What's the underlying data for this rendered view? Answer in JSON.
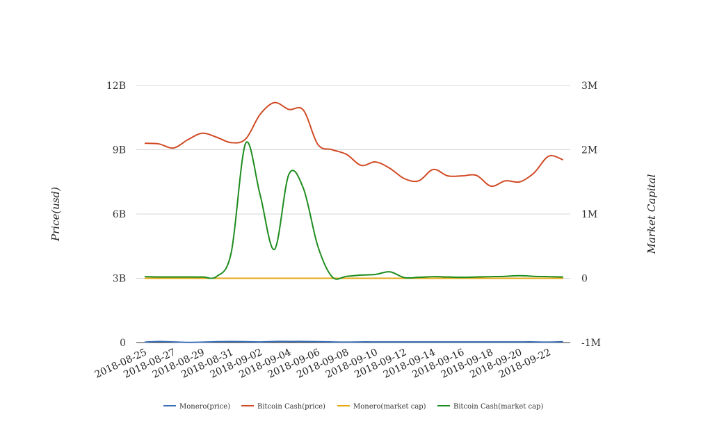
{
  "chart_data": {
    "type": "line",
    "title": "",
    "ylabel_left": "Price(usd)",
    "ylabel_right": "Market Capital",
    "y_left_ticks": [
      "0",
      "3B",
      "6B",
      "9B",
      "12B"
    ],
    "y_left_range": [
      0,
      12000000000
    ],
    "y_right_ticks": [
      "-1M",
      "0",
      "1M",
      "2M",
      "3M"
    ],
    "y_right_range": [
      -1000000,
      3000000
    ],
    "x_ticks": [
      "2018-08-25",
      "2018-08-27",
      "2018-08-29",
      "2018-08-31",
      "2018-09-02",
      "2018-09-04",
      "2018-09-06",
      "2018-09-08",
      "2018-09-10",
      "2018-09-12",
      "2018-09-14",
      "2018-09-16",
      "2018-09-18",
      "2018-09-20",
      "2018-09-22"
    ],
    "x": [
      "2018-08-25",
      "2018-08-26",
      "2018-08-27",
      "2018-08-28",
      "2018-08-29",
      "2018-08-30",
      "2018-08-31",
      "2018-09-01",
      "2018-09-02",
      "2018-09-03",
      "2018-09-04",
      "2018-09-05",
      "2018-09-06",
      "2018-09-07",
      "2018-09-08",
      "2018-09-09",
      "2018-09-10",
      "2018-09-11",
      "2018-09-12",
      "2018-09-13",
      "2018-09-14",
      "2018-09-15",
      "2018-09-16",
      "2018-09-17",
      "2018-09-18",
      "2018-09-19",
      "2018-09-20",
      "2018-09-21",
      "2018-09-22",
      "2018-09-23"
    ],
    "grid": true,
    "legend_position": "bottom",
    "series": [
      {
        "name": "Monero(price)",
        "axis": "left",
        "color": "#3a6eb5",
        "values": [
          20000000,
          50000000,
          30000000,
          10000000,
          20000000,
          40000000,
          50000000,
          40000000,
          30000000,
          50000000,
          50000000,
          50000000,
          40000000,
          30000000,
          20000000,
          30000000,
          30000000,
          30000000,
          30000000,
          30000000,
          30000000,
          30000000,
          30000000,
          30000000,
          30000000,
          30000000,
          30000000,
          30000000,
          20000000,
          40000000
        ]
      },
      {
        "name": "Bitcoin Cash(price)",
        "axis": "left",
        "color": "#d14a24",
        "values": [
          9300000000,
          9270000000,
          9080000000,
          9470000000,
          9770000000,
          9580000000,
          9330000000,
          9500000000,
          10650000000,
          11200000000,
          10880000000,
          10850000000,
          9250000000,
          9000000000,
          8780000000,
          8270000000,
          8430000000,
          8130000000,
          7650000000,
          7550000000,
          8080000000,
          7780000000,
          7780000000,
          7800000000,
          7300000000,
          7550000000,
          7500000000,
          7930000000,
          8700000000,
          8530000000
        ]
      },
      {
        "name": "Monero(market cap)",
        "axis": "right",
        "color": "#e5a612",
        "values": [
          0,
          0,
          0,
          0,
          0,
          0,
          0,
          0,
          0,
          0,
          0,
          0,
          0,
          0,
          0,
          0,
          0,
          0,
          0,
          0,
          0,
          0,
          0,
          0,
          0,
          0,
          0,
          0,
          0,
          0
        ]
      },
      {
        "name": "Bitcoin Cash(market cap)",
        "axis": "right",
        "color": "#1e8c1e",
        "values": [
          25000,
          20000,
          20000,
          20000,
          20000,
          30000,
          400000,
          2100000,
          1300000,
          450000,
          1620000,
          1400000,
          500000,
          20000,
          30000,
          50000,
          60000,
          100000,
          10000,
          15000,
          25000,
          20000,
          15000,
          20000,
          25000,
          30000,
          40000,
          30000,
          25000,
          20000
        ]
      }
    ]
  }
}
